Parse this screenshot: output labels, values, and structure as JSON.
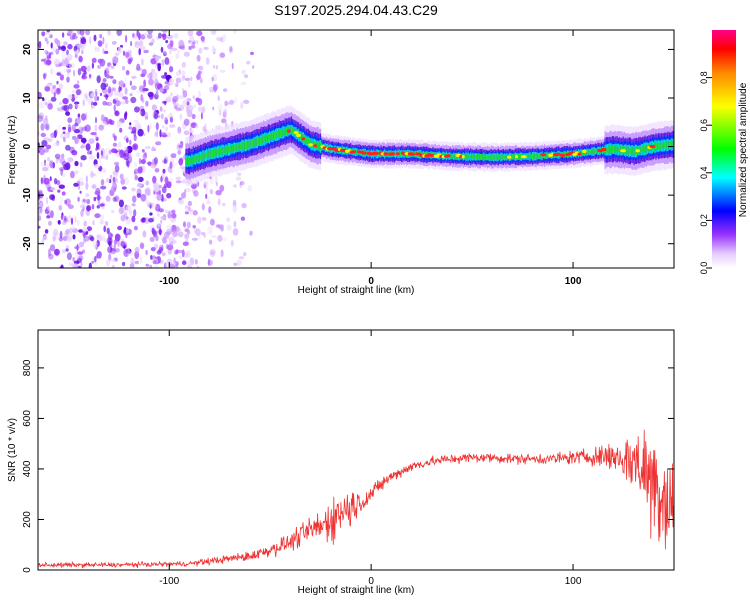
{
  "title": "S197.2025.294.04.43.C29",
  "chart_data": [
    {
      "type": "heatmap",
      "title": "",
      "xlabel": "Height of straight line (km)",
      "ylabel": "Frequency (Hz)",
      "xlim": [
        -165,
        150
      ],
      "ylim": [
        -25,
        24
      ],
      "xticks": [
        -100,
        0,
        100
      ],
      "xtick_labels": [
        "-100",
        "0",
        "100"
      ],
      "yticks": [
        -20,
        -10,
        0,
        10,
        20
      ],
      "ytick_labels": [
        "-20",
        "-10",
        "0",
        "10",
        "20"
      ],
      "ridge": {
        "x": [
          -90,
          -80,
          -70,
          -60,
          -50,
          -40,
          -35,
          -30,
          -20,
          -10,
          0,
          20,
          40,
          60,
          80,
          100,
          110,
          120,
          130,
          140,
          150
        ],
        "freq": [
          -3,
          -1.5,
          -0.5,
          0.5,
          2,
          3.5,
          2,
          0.5,
          -0.5,
          -1,
          -1.5,
          -1.5,
          -2,
          -2.2,
          -2,
          -1.5,
          -1,
          -0.5,
          -1,
          0,
          0.5
        ]
      },
      "colorbar": {
        "label": "Normalized spectral amplitude",
        "range": [
          0,
          1
        ],
        "ticks": [
          0.0,
          0.2,
          0.4,
          0.6,
          0.8
        ],
        "tick_labels": [
          "0.0",
          "0.2",
          "0.4",
          "0.6",
          "0.8"
        ]
      }
    },
    {
      "type": "line",
      "title": "",
      "xlabel": "Height of straight line (km)",
      "ylabel": "SNR (10 * v/v)",
      "xlim": [
        -165,
        150
      ],
      "ylim": [
        0,
        950
      ],
      "xticks": [
        -100,
        0,
        100
      ],
      "xtick_labels": [
        "-100",
        "0",
        "100"
      ],
      "yticks": [
        0,
        200,
        400,
        600,
        800
      ],
      "ytick_labels": [
        "0",
        "200",
        "400",
        "600",
        "800"
      ],
      "series": [
        {
          "name": "SNR",
          "color": "#ee3333",
          "x": [
            -165,
            -150,
            -130,
            -110,
            -90,
            -80,
            -70,
            -60,
            -50,
            -40,
            -30,
            -25,
            -20,
            -15,
            -10,
            -5,
            0,
            5,
            10,
            20,
            30,
            40,
            50,
            60,
            70,
            80,
            90,
            100,
            110,
            120,
            130,
            135,
            140,
            145,
            150
          ],
          "mean": [
            20,
            20,
            20,
            22,
            25,
            35,
            45,
            55,
            80,
            110,
            160,
            170,
            200,
            230,
            250,
            270,
            300,
            340,
            370,
            410,
            430,
            440,
            445,
            445,
            440,
            440,
            440,
            445,
            450,
            450,
            430,
            400,
            350,
            300,
            260
          ],
          "noise": [
            12,
            12,
            12,
            12,
            12,
            18,
            20,
            25,
            35,
            45,
            60,
            90,
            110,
            110,
            100,
            60,
            40,
            35,
            30,
            25,
            25,
            25,
            25,
            25,
            25,
            25,
            30,
            35,
            45,
            80,
            150,
            230,
            300,
            320,
            300
          ]
        }
      ]
    }
  ]
}
